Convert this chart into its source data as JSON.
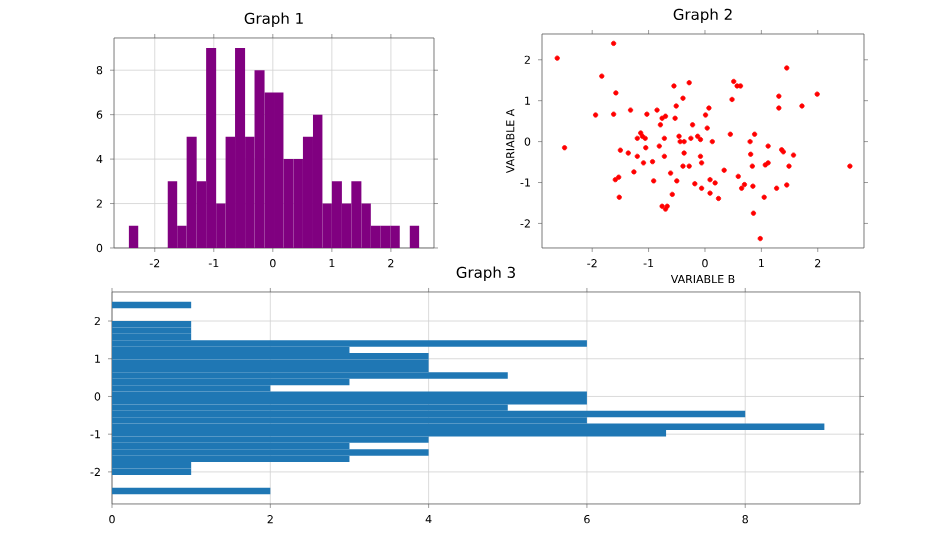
{
  "chart_data": [
    {
      "type": "histogram",
      "title": "Graph 1",
      "color": "#800080",
      "grid": true,
      "bins": [
        -2.44,
        -2.28,
        -1.78,
        -1.62,
        -1.46,
        -1.29,
        -1.13,
        -0.96,
        -0.8,
        -0.64,
        -0.47,
        -0.31,
        -0.14,
        0.02,
        0.18,
        0.35,
        0.51,
        0.68,
        0.84,
        1.0,
        1.17,
        1.33,
        1.5,
        1.66,
        1.82,
        1.99,
        2.15,
        2.32,
        2.48
      ],
      "values": [
        1,
        0,
        3,
        1,
        5,
        3,
        9,
        2,
        5,
        9,
        5,
        8,
        7,
        7,
        4,
        4,
        5,
        6,
        2,
        3,
        2,
        3,
        2,
        1,
        1,
        1,
        0,
        1
      ],
      "xlim": [
        -2.69,
        2.73
      ],
      "ylim": [
        0,
        9.45
      ],
      "xticks": [
        -2,
        -1,
        0,
        1,
        2
      ],
      "yticks": [
        0,
        2,
        4,
        6,
        8
      ]
    },
    {
      "type": "scatter",
      "title": "Graph 2",
      "xlabel": "VARIABLE B",
      "ylabel": "VARIABLE A",
      "color": "#ff0000",
      "marker": "circle",
      "x": [
        -2.62,
        -2.49,
        -1.83,
        -1.94,
        -1.62,
        -1.58,
        -1.62,
        -1.59,
        -1.53,
        -1.52,
        -1.5,
        -1.32,
        -1.36,
        -1.26,
        -1.2,
        -1.2,
        -1.14,
        -1.11,
        -1.06,
        -1.09,
        -1.05,
        -1.03,
        -0.93,
        -0.91,
        -0.85,
        -0.81,
        -0.79,
        -0.76,
        -0.72,
        -0.7,
        -0.72,
        -0.76,
        -0.7,
        -0.67,
        -0.61,
        -0.58,
        -0.55,
        -0.53,
        -0.51,
        -0.5,
        -0.46,
        -0.44,
        -0.39,
        -0.39,
        -0.37,
        -0.37,
        -0.28,
        -0.28,
        -0.25,
        -0.22,
        -0.18,
        -0.13,
        -0.08,
        -0.08,
        -0.06,
        -0.06,
        0.01,
        0.04,
        0.07,
        0.09,
        0.09,
        0.13,
        0.18,
        0.24,
        0.34,
        0.45,
        0.48,
        0.51,
        0.57,
        0.63,
        0.59,
        0.65,
        0.7,
        0.8,
        0.81,
        0.84,
        0.88,
        0.86,
        0.85,
        0.98,
        1.05,
        1.07,
        1.12,
        1.12,
        1.27,
        1.31,
        1.31,
        1.36,
        1.39,
        1.45,
        1.45,
        1.49,
        1.57,
        1.72,
        1.99,
        2.57
      ],
      "values": [
        2.04,
        -0.15,
        1.6,
        0.65,
        2.4,
        1.19,
        0.67,
        -0.93,
        -0.87,
        -1.36,
        -0.21,
        0.77,
        -0.28,
        -0.74,
        -0.36,
        0.08,
        0.21,
        0.13,
        0.08,
        -0.52,
        -0.15,
        0.67,
        -0.49,
        -0.96,
        0.77,
        -0.11,
        0.41,
        0.57,
        -0.36,
        0.62,
        0.08,
        -1.58,
        -1.65,
        -1.58,
        -0.77,
        -1.29,
        1.36,
        0.57,
        0.87,
        -0.96,
        0.13,
        0.0,
        1.06,
        -0.6,
        -0.28,
        0.0,
        1.44,
        -0.6,
        0.08,
        0.41,
        -1.03,
        0.13,
        0.05,
        -0.36,
        -0.52,
        -1.14,
        0.65,
        0.33,
        0.82,
        -0.93,
        -1.26,
        0.0,
        -1.01,
        -1.39,
        -0.7,
        0.18,
        1.03,
        1.47,
        1.36,
        1.36,
        -0.85,
        -1.14,
        -1.05,
        0.0,
        -0.31,
        -0.6,
        0.18,
        -1.75,
        -1.09,
        -2.37,
        -1.36,
        -0.57,
        -0.52,
        -0.11,
        -1.14,
        1.11,
        0.82,
        -0.2,
        -0.25,
        1.8,
        -1.06,
        -0.6,
        -0.33,
        0.87,
        1.16,
        -0.6
      ],
      "xlim": [
        -2.89,
        2.82
      ],
      "ylim": [
        -2.6,
        2.63
      ],
      "xticks": [
        -2,
        -1,
        0,
        1,
        2
      ],
      "yticks": [
        -2,
        -1,
        0,
        1,
        2
      ]
    },
    {
      "type": "histogram",
      "orientation": "horizontal",
      "title": "Graph 3",
      "color": "#1f77b4",
      "grid": true,
      "bins": [
        -2.59,
        -2.42,
        -2.08,
        -1.91,
        -1.74,
        -1.57,
        -1.4,
        -1.23,
        -1.06,
        -0.89,
        -0.72,
        -0.55,
        -0.38,
        -0.21,
        -0.04,
        0.13,
        0.3,
        0.47,
        0.64,
        0.81,
        0.98,
        1.15,
        1.32,
        1.49,
        1.66,
        1.83,
        2.0,
        2.34,
        2.51
      ],
      "values": [
        2,
        0,
        1,
        1,
        3,
        4,
        3,
        4,
        7,
        9,
        6,
        8,
        5,
        6,
        6,
        2,
        3,
        5,
        4,
        4,
        4,
        3,
        6,
        1,
        1,
        1,
        0,
        1
      ],
      "xlim": [
        0,
        9.45
      ],
      "ylim": [
        -2.85,
        2.77
      ],
      "xticks": [
        0,
        2,
        4,
        6,
        8
      ],
      "yticks": [
        -2,
        -1,
        0,
        1,
        2
      ]
    }
  ]
}
